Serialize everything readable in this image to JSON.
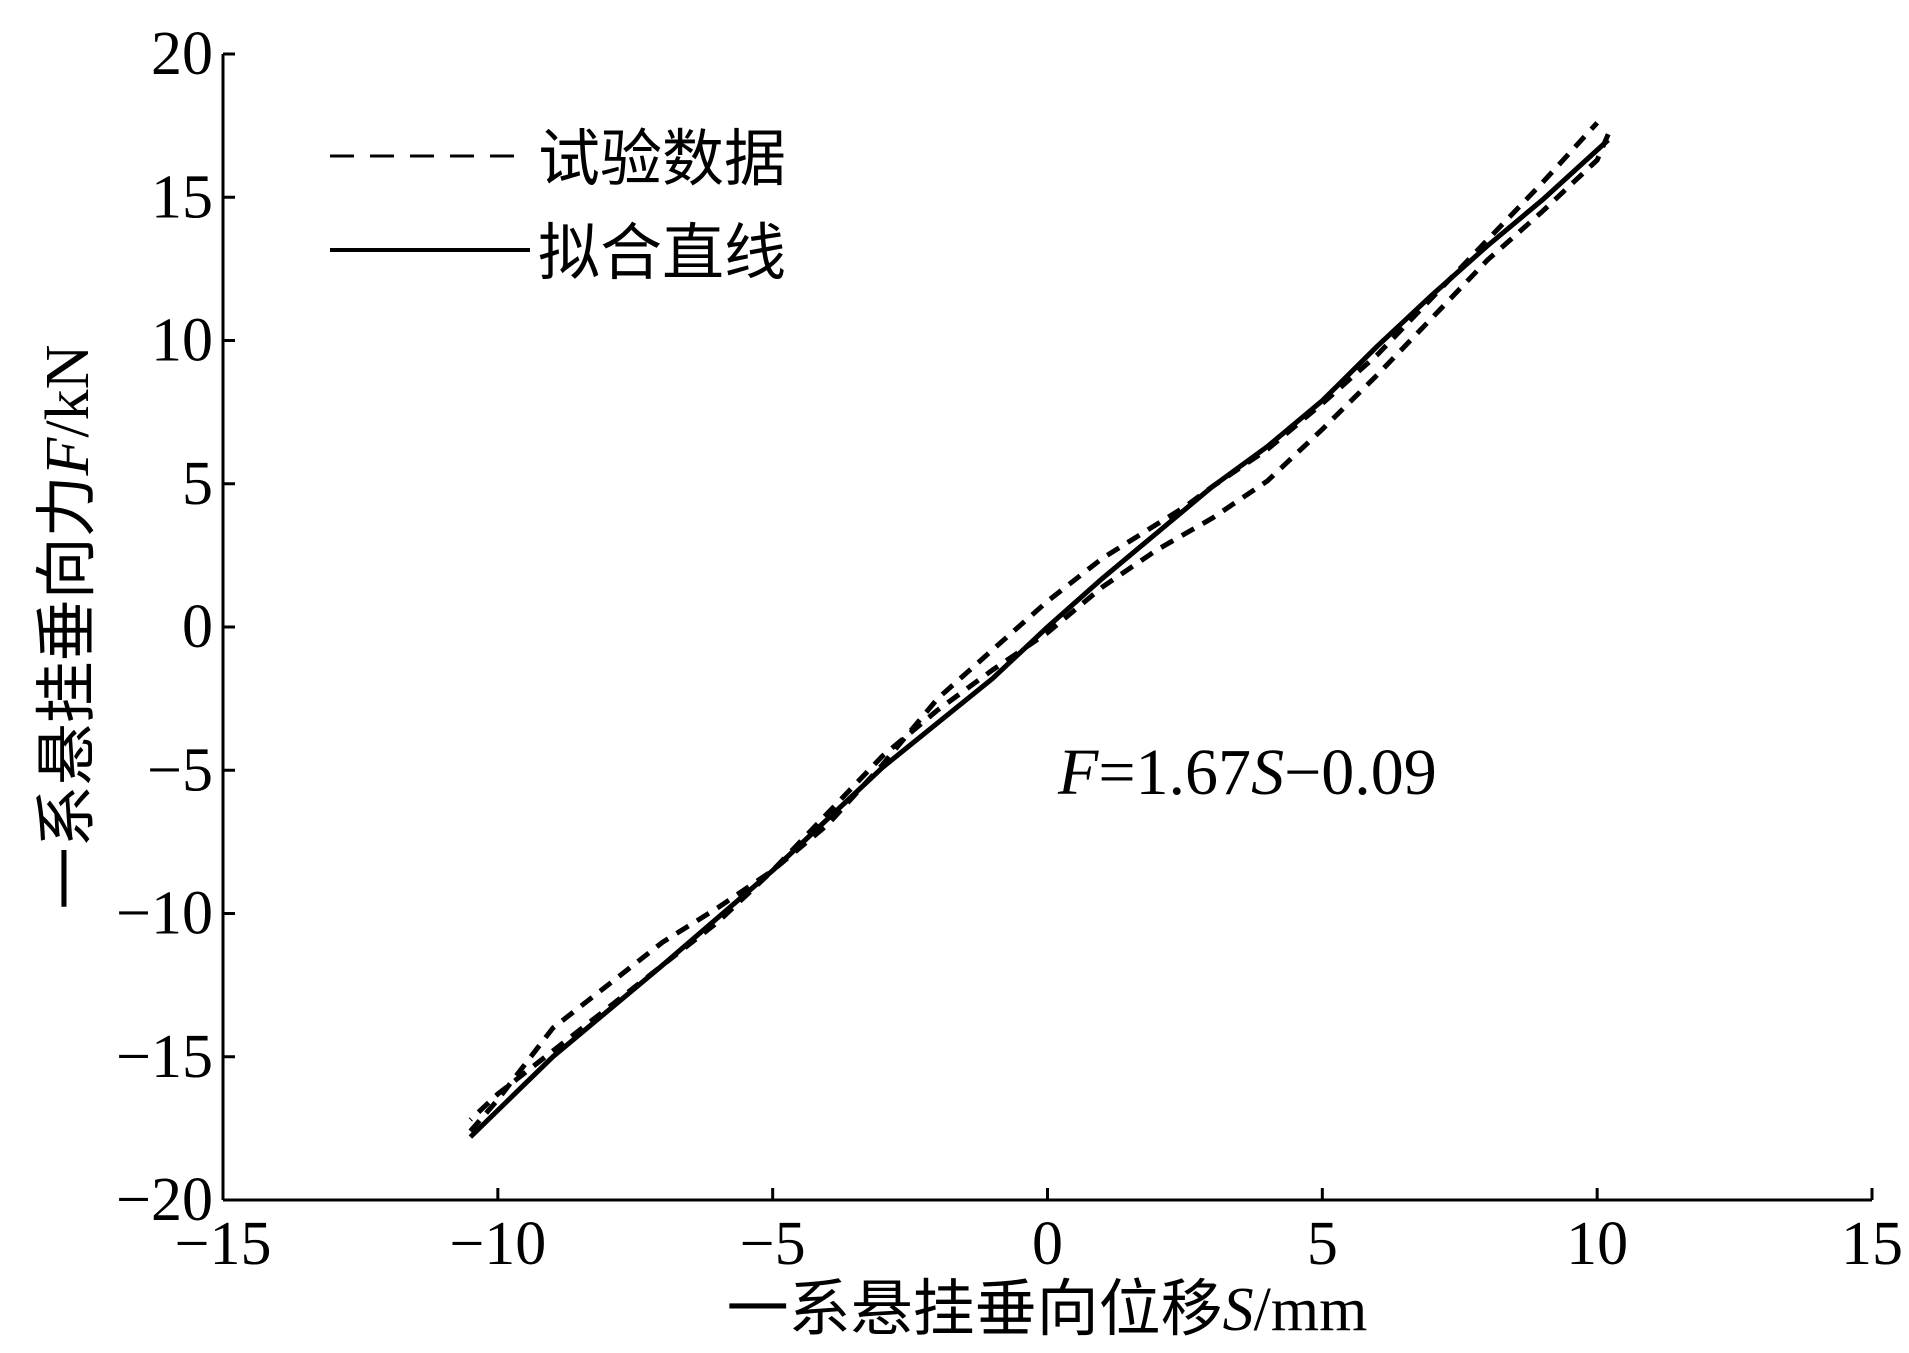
{
  "chart_data": {
    "type": "line",
    "xlabel_prefix": "一系悬挂垂向位移",
    "xlabel_var": "S",
    "xlabel_unit": "/mm",
    "ylabel_prefix": "一系悬挂垂向力",
    "ylabel_var": "F",
    "ylabel_unit": "/kN",
    "xlim": [
      -15,
      15
    ],
    "ylim": [
      -20,
      20
    ],
    "xticks": [
      -15,
      -10,
      -5,
      0,
      5,
      10,
      15
    ],
    "yticks": [
      -20,
      -15,
      -10,
      -5,
      0,
      5,
      10,
      15,
      20
    ],
    "xtick_labels": [
      "−15",
      "−10",
      "−5",
      "0",
      "5",
      "10",
      "15"
    ],
    "ytick_labels": [
      "−20",
      "−15",
      "−10",
      "−5",
      "0",
      "5",
      "10",
      "15",
      "20"
    ],
    "grid": false,
    "legend_position": "top-left",
    "equation": {
      "var_f": "F",
      "mid": "=1.67",
      "var_s": "S",
      "tail": "−0.09"
    },
    "series": [
      {
        "name": "试验数据",
        "style": "dashed",
        "color": "#000000",
        "branches": [
          {
            "x": [
              -10.5,
              -10.0,
              -9.0,
              -8.0,
              -7.0,
              -6.0,
              -5.0,
              -4.0,
              -3.0,
              -2.0,
              -1.0,
              0.0,
              1.0,
              2.0,
              2.5,
              3.0,
              4.0,
              5.0,
              6.0,
              7.0,
              8.0,
              9.0,
              10.0
            ],
            "y": [
              -17.6,
              -16.5,
              -14.0,
              -12.5,
              -11.0,
              -9.8,
              -8.5,
              -6.9,
              -4.8,
              -2.5,
              -0.8,
              0.9,
              2.4,
              3.6,
              4.2,
              4.9,
              6.2,
              7.8,
              9.5,
              11.5,
              13.5,
              15.5,
              17.6
            ]
          },
          {
            "x": [
              10.2,
              10.0,
              9.0,
              8.0,
              7.0,
              6.0,
              5.0,
              4.0,
              3.0,
              2.0,
              1.0,
              0.0,
              -1.0,
              -2.0,
              -3.0,
              -4.0,
              -5.0,
              -6.0,
              -7.0,
              -8.0,
              -9.0,
              -10.0,
              -10.5
            ],
            "y": [
              17.2,
              16.3,
              14.5,
              12.8,
              10.8,
              8.8,
              6.9,
              5.1,
              3.8,
              2.7,
              1.4,
              -0.2,
              -1.5,
              -2.9,
              -4.5,
              -6.5,
              -8.5,
              -10.3,
              -11.8,
              -13.3,
              -14.8,
              -16.3,
              -17.2
            ]
          }
        ]
      },
      {
        "name": "拟合直线",
        "style": "solid",
        "color": "#000000",
        "x": [
          -10.5,
          -9.0,
          -7.0,
          -5.0,
          -3.0,
          -1.0,
          0.0,
          1.0,
          2.0,
          3.0,
          4.0,
          5.0,
          6.0,
          7.0,
          8.0,
          9.0,
          10.2
        ],
        "y": [
          -17.8,
          -15.0,
          -11.8,
          -8.5,
          -4.9,
          -1.8,
          0.0,
          1.7,
          3.3,
          4.9,
          6.3,
          7.9,
          9.8,
          11.6,
          13.3,
          14.9,
          17.0
        ]
      }
    ]
  }
}
